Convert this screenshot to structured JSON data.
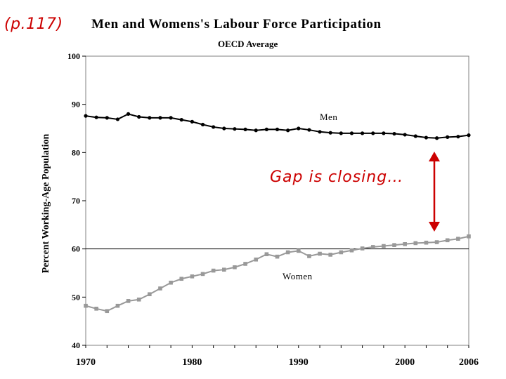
{
  "page_ref": "(p.117)",
  "annotation": "Gap is closing…",
  "colors": {
    "men": "#000000",
    "women": "#999999",
    "annotation": "#cc0000"
  },
  "chart_data": {
    "type": "line",
    "title": "Men and Womens's Labour Force Participation",
    "subtitle": "OECD Average",
    "ylabel": "Percent Working-Age Population",
    "xlabel": "",
    "ylim": [
      40,
      100
    ],
    "xlim": [
      1970,
      2006
    ],
    "yticks": [
      40,
      50,
      60,
      70,
      80,
      90,
      100
    ],
    "xticks": [
      "1970",
      "1980",
      "1990",
      "2000",
      "2006"
    ],
    "x": [
      1970,
      1971,
      1972,
      1973,
      1974,
      1975,
      1976,
      1977,
      1978,
      1979,
      1980,
      1981,
      1982,
      1983,
      1984,
      1985,
      1986,
      1987,
      1988,
      1989,
      1990,
      1991,
      1992,
      1993,
      1994,
      1995,
      1996,
      1997,
      1998,
      1999,
      2000,
      2001,
      2002,
      2003,
      2004,
      2005,
      2006
    ],
    "series": [
      {
        "name": "Men",
        "values": [
          87.6,
          87.3,
          87.2,
          86.9,
          88.0,
          87.4,
          87.2,
          87.2,
          87.2,
          86.8,
          86.4,
          85.8,
          85.3,
          85.0,
          84.9,
          84.8,
          84.6,
          84.8,
          84.8,
          84.6,
          85.0,
          84.7,
          84.3,
          84.1,
          84.0,
          84.0,
          84.0,
          84.0,
          84.0,
          83.9,
          83.7,
          83.4,
          83.1,
          83.0,
          83.2,
          83.3,
          83.6
        ]
      },
      {
        "name": "Women",
        "values": [
          48.2,
          47.6,
          47.1,
          48.2,
          49.2,
          49.5,
          50.6,
          51.8,
          53.0,
          53.8,
          54.3,
          54.8,
          55.5,
          55.7,
          56.2,
          56.9,
          57.8,
          58.9,
          58.4,
          59.3,
          59.6,
          58.5,
          59.0,
          58.8,
          59.3,
          59.7,
          60.1,
          60.4,
          60.6,
          60.8,
          61.0,
          61.2,
          61.3,
          61.4,
          61.8,
          62.1,
          62.6
        ]
      }
    ],
    "reference_line": 60,
    "grid": false,
    "legend": "inline labels"
  }
}
